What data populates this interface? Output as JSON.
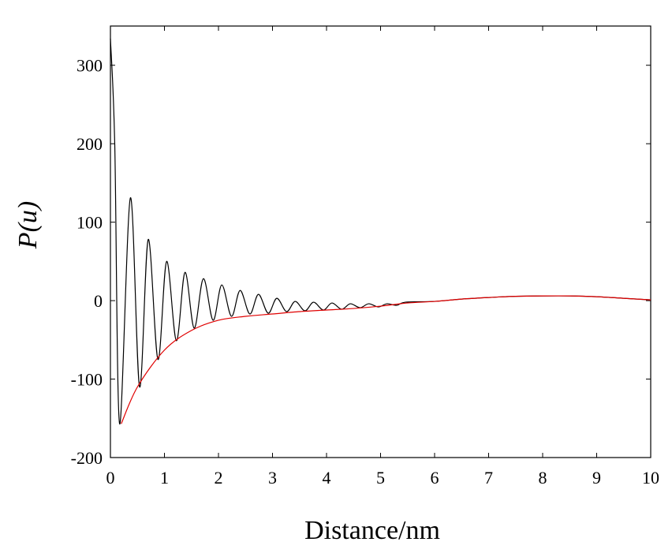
{
  "chart_data": {
    "type": "line",
    "x_label": "Distance/nm",
    "y_label": "P(u)",
    "xlim": [
      0,
      10
    ],
    "ylim": [
      -200,
      350
    ],
    "xticks": [
      0,
      1,
      2,
      3,
      4,
      5,
      6,
      7,
      8,
      9,
      10
    ],
    "yticks": [
      -200,
      -100,
      0,
      100,
      200,
      300
    ],
    "series": [
      {
        "color": "#000000",
        "x": [
          0,
          0.08,
          0.17,
          0.37,
          0.54,
          0.7,
          0.88,
          1.04,
          1.22,
          1.38,
          1.55,
          1.72,
          1.9,
          2.06,
          2.24,
          2.4,
          2.58,
          2.74,
          2.92,
          3.08,
          3.26,
          3.42,
          3.6,
          3.76,
          3.94,
          4.1,
          4.28,
          4.44,
          4.62,
          4.78,
          4.96,
          5.12,
          5.3,
          5.46,
          6,
          6.5,
          7,
          7.5,
          8,
          8.5,
          9,
          9.5,
          10
        ],
        "values": [
          334,
          200,
          -157,
          131,
          -110,
          78,
          -75,
          50,
          -51,
          36,
          -35,
          28,
          -25,
          20,
          -20,
          13,
          -17,
          8,
          -16,
          3,
          -14,
          -1,
          -13,
          -2,
          -12,
          -3,
          -11,
          -4,
          -9,
          -4,
          -8,
          -4,
          -6,
          -2,
          -1,
          2,
          4,
          5.5,
          6,
          6,
          5,
          3,
          1
        ]
      },
      {
        "color": "#e00000",
        "x": [
          0.2,
          0.5,
          1,
          1.5,
          2,
          2.5,
          3,
          3.5,
          4,
          4.5,
          5,
          5.5,
          6,
          6.5,
          7,
          7.5,
          8,
          8.5,
          9,
          9.5,
          10
        ],
        "values": [
          -157,
          -110,
          -63,
          -38,
          -25,
          -20,
          -17,
          -14,
          -12,
          -10,
          -7,
          -3,
          -1,
          2,
          4,
          5.5,
          6,
          6,
          5,
          3,
          1
        ]
      }
    ]
  }
}
